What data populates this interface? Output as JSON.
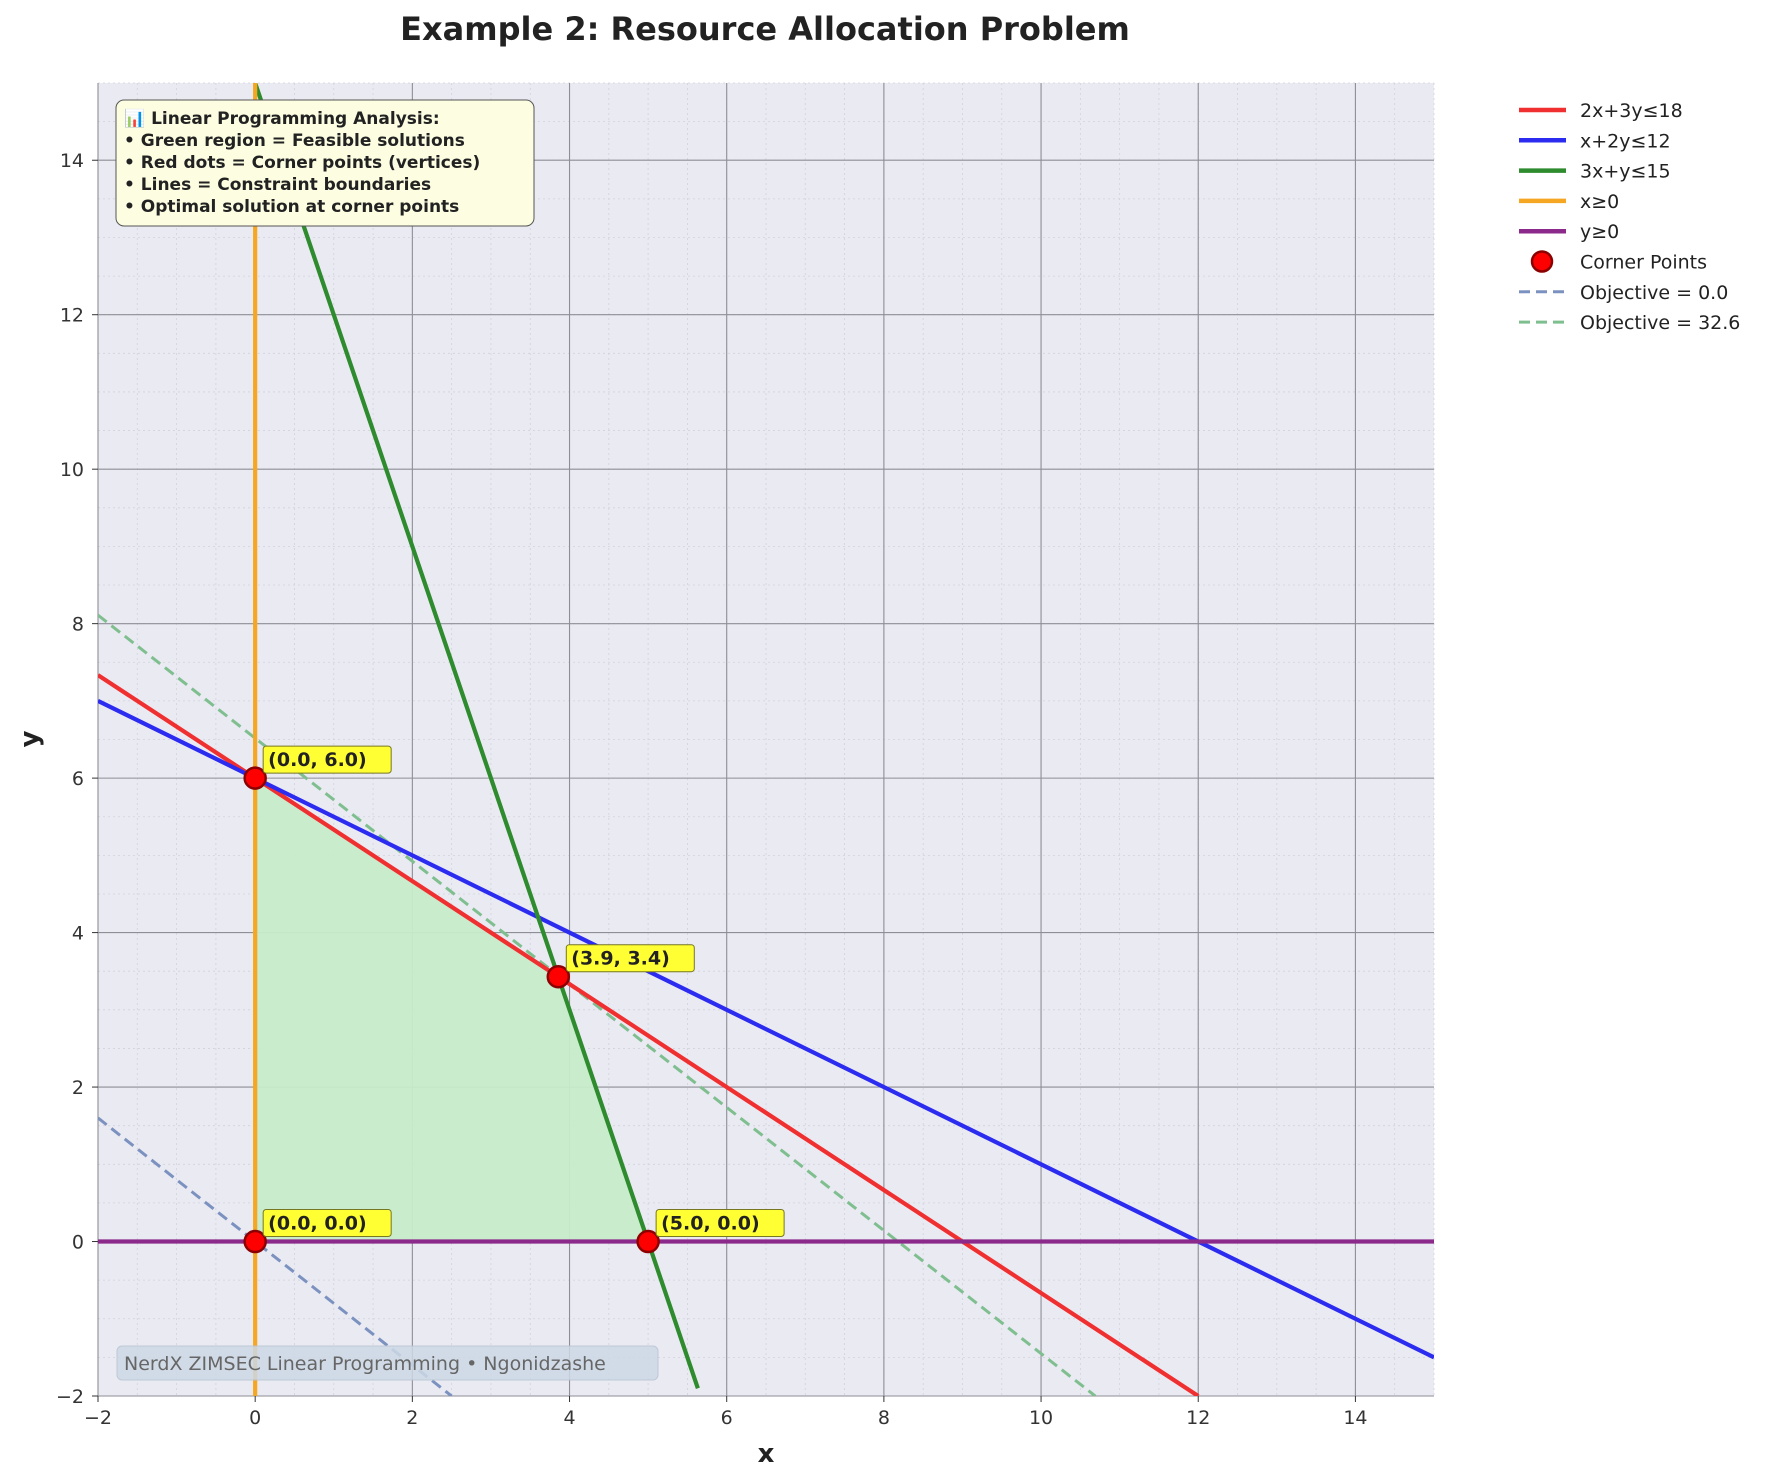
{
  "chart_data": {
    "type": "line",
    "title": "Example 2: Resource Allocation Problem",
    "xlabel": "x",
    "ylabel": "y",
    "xlim": [
      -2,
      15
    ],
    "ylim": [
      -2,
      15
    ],
    "xticks": [
      -2,
      0,
      2,
      4,
      6,
      8,
      10,
      12,
      14
    ],
    "yticks": [
      -2,
      0,
      2,
      4,
      6,
      8,
      10,
      12,
      14
    ],
    "grid": true,
    "legend_position": "outside-right",
    "series": [
      {
        "name": "2x+3y≤18",
        "color": "#f03030",
        "style": "solid",
        "points": [
          [
            -2,
            7.333
          ],
          [
            12,
            -2
          ]
        ]
      },
      {
        "name": "x+2y≤12",
        "color": "#2c2cf0",
        "style": "solid",
        "points": [
          [
            -2,
            7
          ],
          [
            15,
            -1.5
          ]
        ]
      },
      {
        "name": "3x+y≤15",
        "color": "#2e8b2e",
        "style": "solid",
        "points": [
          [
            0,
            15
          ],
          [
            5.633,
            -1.9
          ]
        ]
      },
      {
        "name": "x≥0",
        "color": "#f5a623",
        "style": "solid",
        "points": [
          [
            0,
            -2
          ],
          [
            0,
            15
          ]
        ]
      },
      {
        "name": "y≥0",
        "color": "#8b2a8b",
        "style": "solid",
        "points": [
          [
            -2,
            0
          ],
          [
            15,
            0
          ]
        ]
      },
      {
        "name": "Objective = 0.0",
        "color": "#7b92c0",
        "style": "dashed",
        "points": [
          [
            -2,
            1.6
          ],
          [
            2.5,
            -2
          ]
        ]
      },
      {
        "name": "Objective = 32.6",
        "color": "#7fbf8f",
        "style": "dashed",
        "points": [
          [
            -2,
            8.11
          ],
          [
            10.69,
            -2
          ]
        ]
      }
    ],
    "feasible_region": {
      "color": "#c6ecc9",
      "vertices": [
        [
          0,
          0
        ],
        [
          0,
          6
        ],
        [
          3.857,
          3.429
        ],
        [
          5,
          0
        ]
      ]
    },
    "corner_points": {
      "name": "Corner Points",
      "color": "#ff0000",
      "points": [
        {
          "x": 0,
          "y": 6,
          "label": "(0.0, 6.0)"
        },
        {
          "x": 3.857,
          "y": 3.429,
          "label": "(3.9, 3.4)"
        },
        {
          "x": 0,
          "y": 0,
          "label": "(0.0, 0.0)"
        },
        {
          "x": 5,
          "y": 0,
          "label": "(5.0, 0.0)"
        }
      ]
    },
    "info_box": {
      "lines": [
        "📊 Linear Programming Analysis:",
        "• Green region = Feasible solutions",
        "• Red dots = Corner points (vertices)",
        "• Lines = Constraint boundaries",
        "• Optimal solution at corner points"
      ],
      "background": "#fdfde2"
    },
    "watermark": "NerdX ZIMSEC Linear Programming • Ngonidzashe"
  }
}
